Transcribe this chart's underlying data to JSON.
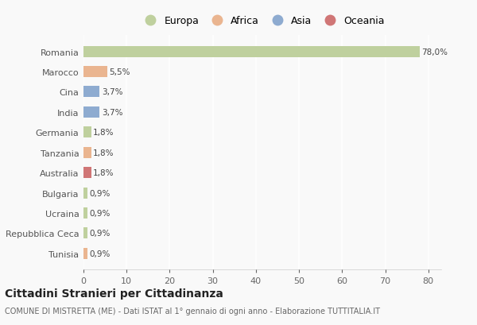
{
  "countries": [
    "Romania",
    "Marocco",
    "Cina",
    "India",
    "Germania",
    "Tanzania",
    "Australia",
    "Bulgaria",
    "Ucraina",
    "Repubblica Ceca",
    "Tunisia"
  ],
  "values": [
    78.0,
    5.5,
    3.7,
    3.7,
    1.8,
    1.8,
    1.8,
    0.9,
    0.9,
    0.9,
    0.9
  ],
  "labels": [
    "78,0%",
    "5,5%",
    "3,7%",
    "3,7%",
    "1,8%",
    "1,8%",
    "1,8%",
    "0,9%",
    "0,9%",
    "0,9%",
    "0,9%"
  ],
  "colors": [
    "#b5c98e",
    "#e8a97e",
    "#7b9ec9",
    "#7b9ec9",
    "#b5c98e",
    "#e8a97e",
    "#c95f5f",
    "#b5c98e",
    "#b5c98e",
    "#b5c98e",
    "#e8a97e"
  ],
  "legend_labels": [
    "Europa",
    "Africa",
    "Asia",
    "Oceania"
  ],
  "legend_colors": [
    "#b5c98e",
    "#e8a97e",
    "#7b9ec9",
    "#c95f5f"
  ],
  "title": "Cittadini Stranieri per Cittadinanza",
  "subtitle": "COMUNE DI MISTRETTA (ME) - Dati ISTAT al 1° gennaio di ogni anno - Elaborazione TUTTITALIA.IT",
  "xlim": [
    0,
    83
  ],
  "xticks": [
    0,
    10,
    20,
    30,
    40,
    50,
    60,
    70,
    80
  ],
  "background_color": "#f9f9f9",
  "grid_color": "#ffffff",
  "bar_height": 0.55
}
